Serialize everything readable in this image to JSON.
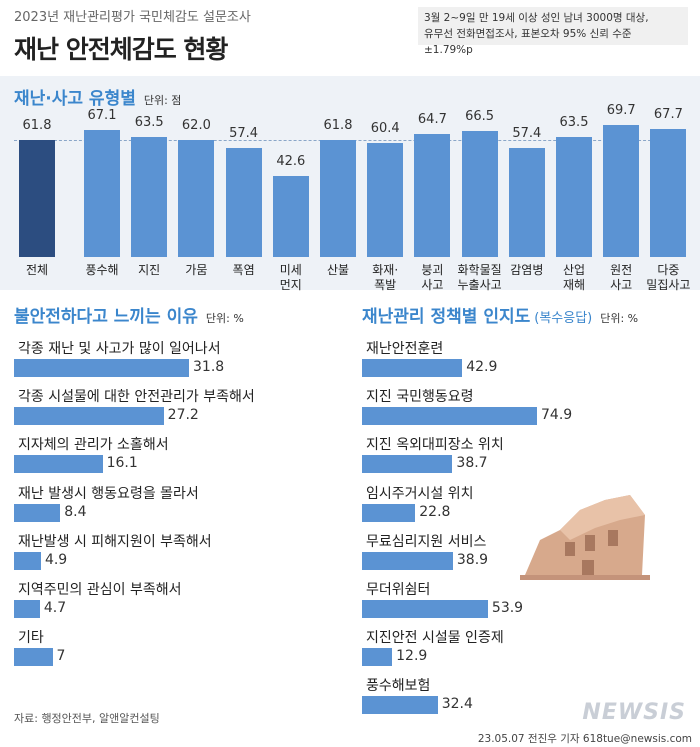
{
  "header": {
    "kicker": "2023년 재난관리평가 국민체감도 설문조사",
    "title": "재난 안전체감도 현황",
    "note": [
      "3월 2~9일 만 19세 이상 성인 남녀 3000명 대상,",
      "유무선 전화면접조사, 표본오차 95% 신뢰 수준 ±1.79%p"
    ]
  },
  "chart_data": [
    {
      "type": "bar",
      "title": "재난·사고 유형별",
      "unit": "단위: 점",
      "categories": [
        "전체",
        "풍수해",
        "지진",
        "가뭄",
        "폭염",
        "미세\n먼지",
        "산불",
        "화재·\n폭발",
        "붕괴\n사고",
        "화학물질\n누출사고",
        "감염병",
        "산업\n재해",
        "원전\n사고",
        "다중\n밀집사고"
      ],
      "values": [
        61.8,
        67.1,
        63.5,
        62.0,
        57.4,
        42.6,
        61.8,
        60.4,
        64.7,
        66.5,
        57.4,
        63.5,
        69.7,
        67.7
      ],
      "value_labels": [
        "61.8",
        "67.1",
        "63.5",
        "62.0",
        "57.4",
        "42.6",
        "61.8",
        "60.4",
        "64.7",
        "66.5",
        "57.4",
        "63.5",
        "69.7",
        "67.7"
      ],
      "colors": [
        "#2c4d80",
        "#5b93d3",
        "#5b93d3",
        "#5b93d3",
        "#5b93d3",
        "#5b93d3",
        "#5b93d3",
        "#5b93d3",
        "#5b93d3",
        "#5b93d3",
        "#5b93d3",
        "#5b93d3",
        "#5b93d3",
        "#5b93d3"
      ],
      "reference_line": true
    },
    {
      "type": "hbar",
      "title": "불안전하다고 느끼는 이유",
      "unit": "단위: %",
      "categories": [
        "각종 재난 및 사고가 많이 일어나서",
        "각종 시설물에 대한 안전관리가 부족해서",
        "지자체의 관리가 소홀해서",
        "재난 발생시 행동요령을 몰라서",
        "재난발생 시 피해지원이 부족해서",
        "지역주민의 관심이 부족해서",
        "기타"
      ],
      "values": [
        31.8,
        27.2,
        16.1,
        8.4,
        4.9,
        4.7,
        7
      ],
      "color": "#5b93d3"
    },
    {
      "type": "hbar",
      "title": "재난관리 정책별 인지도",
      "subtitle": "(복수응답)",
      "unit": "단위: %",
      "categories": [
        "재난안전훈련",
        "지진 국민행동요령",
        "지진 옥외대피장소 위치",
        "임시주거시설 위치",
        "무료심리지원 서비스",
        "무더위쉼터",
        "지진안전 시설물 인증제",
        "풍수해보험"
      ],
      "values": [
        42.9,
        74.9,
        38.7,
        22.8,
        38.9,
        53.9,
        12.9,
        32.4
      ],
      "color": "#5b93d3"
    }
  ],
  "footer": {
    "source": "자료: 행정안전부, 알앤알컨설팅",
    "credit": "23.05.07 전진우 기자 618tue@newsis.com",
    "logo": "NEWSIS"
  }
}
